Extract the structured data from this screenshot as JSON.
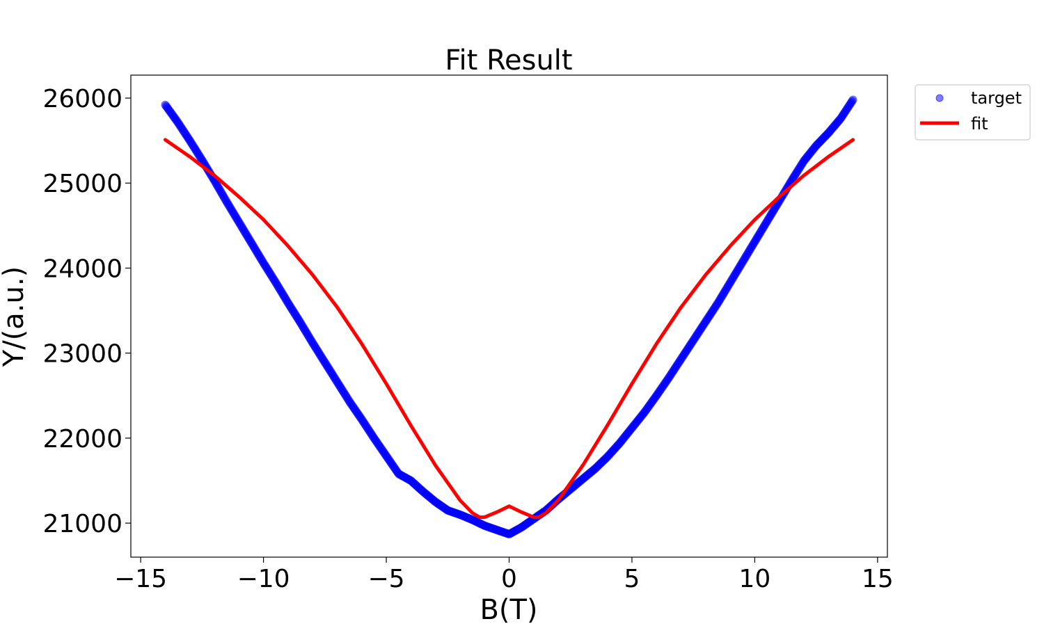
{
  "chart_data": {
    "type": "scatter",
    "title": "Fit Result",
    "xlabel": "B(T)",
    "ylabel": "Y/(a.u.)",
    "xlim": [
      -15.4,
      15.4
    ],
    "ylim": [
      20600,
      26270
    ],
    "xticks": [
      -15,
      -10,
      -5,
      0,
      5,
      10,
      15
    ],
    "xtick_labels": [
      "−15",
      "−10",
      "−5",
      "0",
      "5",
      "10",
      "15"
    ],
    "yticks": [
      21000,
      22000,
      23000,
      24000,
      25000,
      26000
    ],
    "ytick_labels": [
      "21000",
      "22000",
      "23000",
      "24000",
      "25000",
      "26000"
    ],
    "grid": false,
    "legend_position": "outside-top-right",
    "series": [
      {
        "name": "target",
        "kind": "scatter",
        "color": "#0000ff",
        "x": [
          -14,
          -13.5,
          -13,
          -12.5,
          -12,
          -11.5,
          -11,
          -10.5,
          -10,
          -9.5,
          -9,
          -8.5,
          -8,
          -7.5,
          -7,
          -6.5,
          -6,
          -5.5,
          -5,
          -4.5,
          -4,
          -3.5,
          -3,
          -2.5,
          -2,
          -1.5,
          -1,
          -0.5,
          0,
          0.5,
          1,
          1.5,
          2,
          2.5,
          3,
          3.5,
          4,
          4.5,
          5,
          5.5,
          6,
          6.5,
          7,
          7.5,
          8,
          8.5,
          9,
          9.5,
          10,
          10.5,
          11,
          11.5,
          12,
          12.5,
          13,
          13.5,
          14
        ],
        "y": [
          25920,
          25720,
          25500,
          25270,
          25030,
          24780,
          24540,
          24300,
          24060,
          23830,
          23590,
          23360,
          23120,
          22890,
          22660,
          22430,
          22220,
          22000,
          21790,
          21580,
          21500,
          21370,
          21250,
          21150,
          21100,
          21040,
          20970,
          20920,
          20870,
          20950,
          21050,
          21150,
          21280,
          21400,
          21520,
          21640,
          21780,
          21940,
          22120,
          22300,
          22500,
          22710,
          22930,
          23150,
          23370,
          23590,
          23830,
          24070,
          24310,
          24550,
          24790,
          25030,
          25260,
          25440,
          25590,
          25760,
          25980
        ]
      },
      {
        "name": "fit",
        "kind": "line",
        "color": "#ff0000",
        "x": [
          -14,
          -13,
          -12,
          -11,
          -10,
          -9,
          -8,
          -7,
          -6,
          -5,
          -4,
          -3,
          -2,
          -1.5,
          -1.2,
          -1,
          -0.5,
          0,
          0.5,
          1,
          1.2,
          1.5,
          2,
          3,
          4,
          5,
          6,
          7,
          8,
          9,
          10,
          11,
          12,
          13,
          14
        ],
        "y": [
          25510,
          25310,
          25090,
          24840,
          24570,
          24260,
          23920,
          23540,
          23110,
          22640,
          22150,
          21680,
          21270,
          21120,
          21070,
          21070,
          21130,
          21200,
          21130,
          21070,
          21070,
          21120,
          21270,
          21680,
          22150,
          22640,
          23110,
          23540,
          23920,
          24260,
          24570,
          24840,
          25090,
          25310,
          25510
        ]
      }
    ]
  }
}
